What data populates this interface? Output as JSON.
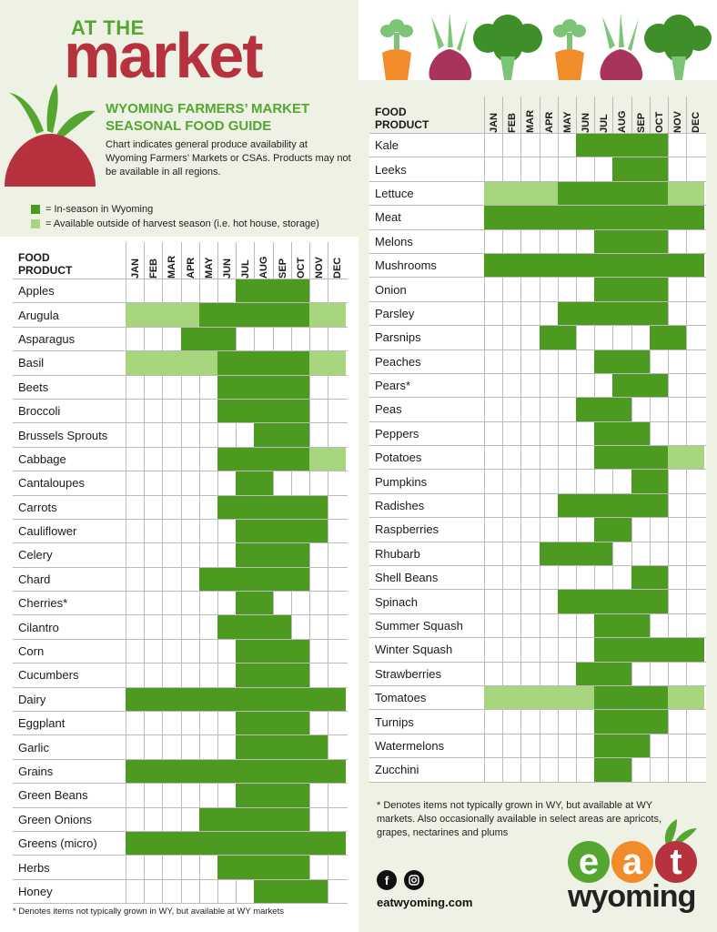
{
  "header": {
    "at_the": "AT THE",
    "market": "market",
    "title_line1": "WYOMING FARMERS’ MARKET",
    "title_line2": "SEASONAL FOOD GUIDE",
    "description": "Chart indicates general produce availability at Wyoming Farmers’ Markets or CSAs. Products may not be available in all regions."
  },
  "legend": {
    "in_season": "= In-season in Wyoming",
    "outside": "= Available outside of harvest season (i.e. hot house, storage)",
    "colors": {
      "in_season": "#4c9a1f",
      "outside": "#a6d57e"
    }
  },
  "table": {
    "product_header_line1": "FOOD",
    "product_header_line2": "PRODUCT",
    "months": [
      "JAN",
      "FEB",
      "MAR",
      "APR",
      "MAY",
      "JUN",
      "JUL",
      "AUG",
      "SEP",
      "OCT",
      "NOV",
      "DEC"
    ]
  },
  "left_rows": [
    {
      "name": "Apples",
      "cells": "000000dddd00"
    },
    {
      "name": "Arugula",
      "cells": "llllddddddll"
    },
    {
      "name": "Asparagus",
      "cells": "000ddd000000"
    },
    {
      "name": "Basil",
      "cells": "llllldddddll"
    },
    {
      "name": "Beets",
      "cells": "00000ddddd00"
    },
    {
      "name": "Broccoli",
      "cells": "00000ddddd00"
    },
    {
      "name": "Brussels Sprouts",
      "cells": "0000000ddd00"
    },
    {
      "name": "Cabbage",
      "cells": "00000dddddll"
    },
    {
      "name": "Cantaloupes",
      "cells": "000000dd0000"
    },
    {
      "name": "Carrots",
      "cells": "00000dddddd0"
    },
    {
      "name": "Cauliflower",
      "cells": "000000ddddd0"
    },
    {
      "name": "Celery",
      "cells": "000000dddd00"
    },
    {
      "name": "Chard",
      "cells": "0000dddddd00"
    },
    {
      "name": "Cherries*",
      "cells": "000000dd0000"
    },
    {
      "name": "Cilantro",
      "cells": "00000dddd000"
    },
    {
      "name": "Corn",
      "cells": "000000dddd00"
    },
    {
      "name": "Cucumbers",
      "cells": "000000dddd00"
    },
    {
      "name": "Dairy",
      "cells": "dddddddddddd"
    },
    {
      "name": "Eggplant",
      "cells": "000000dddd00"
    },
    {
      "name": "Garlic",
      "cells": "000000ddddd0"
    },
    {
      "name": "Grains",
      "cells": "dddddddddddd"
    },
    {
      "name": "Green Beans",
      "cells": "000000dddd00"
    },
    {
      "name": "Green Onions",
      "cells": "0000dddddd00"
    },
    {
      "name": "Greens (micro)",
      "cells": "dddddddddddd"
    },
    {
      "name": "Herbs",
      "cells": "00000ddddd00"
    },
    {
      "name": "Honey",
      "cells": "0000000dddd0"
    }
  ],
  "right_rows": [
    {
      "name": "Kale",
      "cells": "00000ddddd00"
    },
    {
      "name": "Leeks",
      "cells": "0000000ddd00"
    },
    {
      "name": "Lettuce",
      "cells": "llllddddddll"
    },
    {
      "name": "Meat",
      "cells": "dddddddddddd"
    },
    {
      "name": "Melons",
      "cells": "000000dddd00"
    },
    {
      "name": "Mushrooms",
      "cells": "dddddddddddd"
    },
    {
      "name": "Onion",
      "cells": "000000dddd00"
    },
    {
      "name": "Parsley",
      "cells": "0000dddddd00"
    },
    {
      "name": "Parsnips",
      "cells": "000dd0000dd0"
    },
    {
      "name": "Peaches",
      "cells": "000000ddd000"
    },
    {
      "name": "Pears*",
      "cells": "0000000ddd00"
    },
    {
      "name": "Peas",
      "cells": "00000ddd0000"
    },
    {
      "name": "Peppers",
      "cells": "000000ddd000"
    },
    {
      "name": "Potatoes",
      "cells": "000000ddddll"
    },
    {
      "name": "Pumpkins",
      "cells": "00000000dd00"
    },
    {
      "name": "Radishes",
      "cells": "0000dddddd00"
    },
    {
      "name": "Raspberries",
      "cells": "000000dd0000"
    },
    {
      "name": "Rhubarb",
      "cells": "000dddd00000"
    },
    {
      "name": "Shell Beans",
      "cells": "00000000dd00"
    },
    {
      "name": "Spinach",
      "cells": "0000dddddd00"
    },
    {
      "name": "Summer Squash",
      "cells": "000000ddd000"
    },
    {
      "name": "Winter Squash",
      "cells": "000000dddddd"
    },
    {
      "name": "Strawberries",
      "cells": "00000ddd0000"
    },
    {
      "name": "Tomatoes",
      "cells": "llllllddddll"
    },
    {
      "name": "Turnips",
      "cells": "000000dddd00"
    },
    {
      "name": "Watermelons",
      "cells": "000000ddd000"
    },
    {
      "name": "Zucchini",
      "cells": "000000dd0000"
    }
  ],
  "notes": {
    "left": "* Denotes items not typically grown in WY, but available at WY markets",
    "right": "* Denotes items not typically grown in WY, but available at WY markets. Also occasionally available in select areas are apricots, grapes, nectarines and plums"
  },
  "footer": {
    "website": "eatwyoming.com",
    "logo_e": "e",
    "logo_a": "a",
    "logo_t": "t",
    "logo_wyoming": "wyoming"
  },
  "icons": [
    "beet-icon",
    "carrot-icon",
    "onion-icon",
    "broccoli-icon",
    "facebook-icon",
    "instagram-icon"
  ]
}
